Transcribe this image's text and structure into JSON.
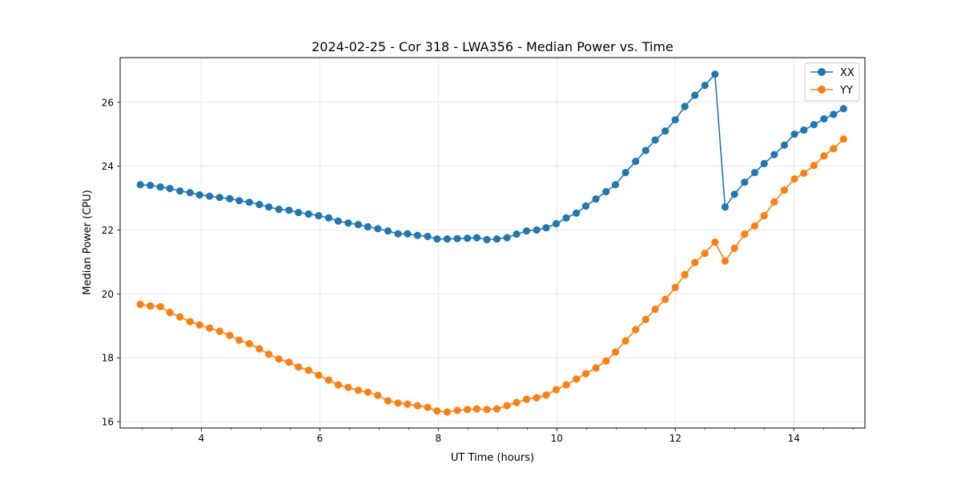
{
  "chart_data": {
    "type": "line",
    "title": "2024-02-25 - Cor 318 - LWA356 - Median Power vs. Time",
    "xlabel": "UT Time (hours)",
    "ylabel": "Median Power (CPU)",
    "xlim": [
      2.63,
      15.2
    ],
    "ylim": [
      15.8,
      27.4
    ],
    "xticks": [
      4,
      6,
      8,
      10,
      12,
      14
    ],
    "xticklabels": [
      "4",
      "6",
      "8",
      "10",
      "12",
      "14"
    ],
    "yticks": [
      16,
      18,
      20,
      22,
      24,
      26
    ],
    "yticklabels": [
      "16",
      "18",
      "20",
      "22",
      "24",
      "26"
    ],
    "x_minor_step": 0.5,
    "grid": true,
    "legend_position": "top-right",
    "x": [
      2.97,
      3.14,
      3.31,
      3.47,
      3.64,
      3.81,
      3.97,
      4.14,
      4.31,
      4.48,
      4.64,
      4.81,
      4.98,
      5.14,
      5.31,
      5.48,
      5.64,
      5.81,
      5.98,
      6.15,
      6.31,
      6.48,
      6.65,
      6.81,
      6.98,
      7.15,
      7.32,
      7.48,
      7.65,
      7.82,
      7.98,
      8.15,
      8.32,
      8.49,
      8.65,
      8.82,
      8.99,
      9.16,
      9.32,
      9.49,
      9.66,
      9.82,
      9.99,
      10.16,
      10.33,
      10.49,
      10.66,
      10.83,
      10.99,
      11.16,
      11.33,
      11.5,
      11.66,
      11.83,
      12.0,
      12.16,
      12.33,
      12.5,
      12.67,
      12.84,
      13.0,
      13.17,
      13.34,
      13.5,
      13.67,
      13.84,
      14.01,
      14.17,
      14.34,
      14.51,
      14.67,
      14.84
    ],
    "series": [
      {
        "name": "XX",
        "color": "#1f77b4",
        "values": [
          23.42,
          23.4,
          23.35,
          23.3,
          23.22,
          23.17,
          23.1,
          23.06,
          23.02,
          22.98,
          22.92,
          22.87,
          22.8,
          22.72,
          22.65,
          22.62,
          22.55,
          22.5,
          22.45,
          22.38,
          22.28,
          22.22,
          22.17,
          22.1,
          22.04,
          21.97,
          21.88,
          21.88,
          21.83,
          21.8,
          21.72,
          21.72,
          21.73,
          21.74,
          21.76,
          21.7,
          21.72,
          21.76,
          21.87,
          21.97,
          22.0,
          22.07,
          22.2,
          22.38,
          22.53,
          22.75,
          22.97,
          23.2,
          23.42,
          23.8,
          24.15,
          24.49,
          24.82,
          25.1,
          25.45,
          25.87,
          26.22,
          26.53,
          26.88,
          22.72,
          23.12,
          23.5,
          23.8,
          24.08,
          24.36,
          24.66,
          25.0,
          25.13,
          25.3,
          25.48,
          25.62,
          25.8
        ]
      },
      {
        "name": "YY",
        "color": "#ff7f0e",
        "values": [
          19.67,
          19.62,
          19.6,
          19.42,
          19.28,
          19.13,
          19.03,
          18.93,
          18.83,
          18.7,
          18.55,
          18.44,
          18.28,
          18.11,
          17.96,
          17.86,
          17.71,
          17.61,
          17.45,
          17.3,
          17.15,
          17.07,
          16.98,
          16.92,
          16.82,
          16.65,
          16.58,
          16.55,
          16.5,
          16.45,
          16.33,
          16.3,
          16.35,
          16.38,
          16.4,
          16.38,
          16.4,
          16.5,
          16.6,
          16.7,
          16.75,
          16.83,
          17.0,
          17.15,
          17.33,
          17.5,
          17.68,
          17.9,
          18.18,
          18.53,
          18.88,
          19.2,
          19.52,
          19.83,
          20.2,
          20.6,
          20.98,
          21.27,
          21.62,
          21.03,
          21.43,
          21.87,
          22.13,
          22.45,
          22.88,
          23.25,
          23.6,
          23.78,
          24.02,
          24.32,
          24.55,
          24.85
        ]
      }
    ]
  }
}
